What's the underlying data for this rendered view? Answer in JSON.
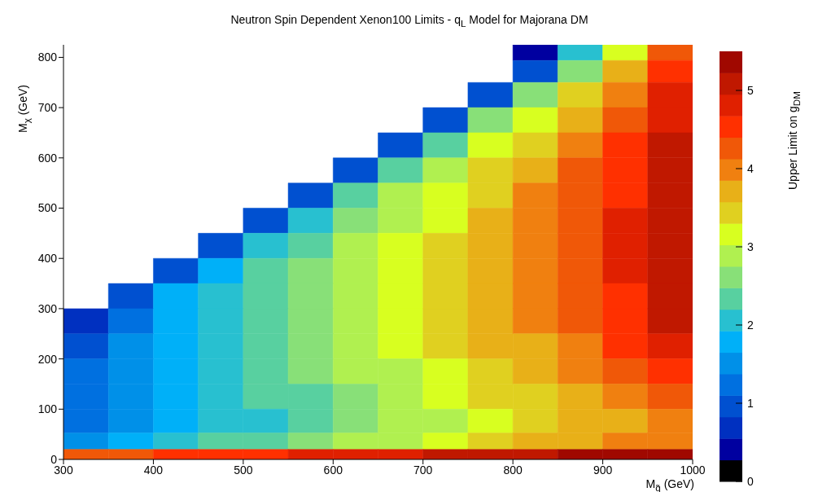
{
  "chart_data": {
    "type": "heatmap",
    "title": "Neutron Spin Dependent Xenon100 Limits - q$_{L}$ Model for Majorana DM",
    "xlabel": "M$_{q̃}$ (GeV)",
    "ylabel": "M$_{χ}$ (GeV)",
    "clabel": "Upper Limit on g$_{DM}$",
    "x": [
      325,
      375,
      425,
      475,
      525,
      575,
      625,
      675,
      725,
      775,
      825,
      875,
      925,
      975
    ],
    "y": [
      812.5,
      775,
      725,
      675,
      625,
      575,
      525,
      475,
      425,
      375,
      325,
      275,
      225,
      175,
      125,
      75,
      30,
      10
    ],
    "cells": [
      [
        null,
        null,
        null,
        null,
        null,
        null,
        null,
        null,
        null,
        null,
        0.5,
        2.0,
        3.2,
        4.3
      ],
      [
        null,
        null,
        null,
        null,
        null,
        null,
        null,
        null,
        null,
        null,
        0.9,
        2.6,
        3.6,
        4.5
      ],
      [
        null,
        null,
        null,
        null,
        null,
        null,
        null,
        null,
        null,
        0.9,
        2.6,
        3.4,
        4.05,
        4.7
      ],
      [
        null,
        null,
        null,
        null,
        null,
        null,
        null,
        null,
        0.9,
        2.5,
        3.2,
        3.8,
        4.3,
        4.85
      ],
      [
        null,
        null,
        null,
        null,
        null,
        null,
        null,
        0.9,
        2.4,
        3.05,
        3.55,
        4.0,
        4.45,
        4.98
      ],
      [
        null,
        null,
        null,
        null,
        null,
        null,
        0.9,
        2.3,
        2.9,
        3.35,
        3.75,
        4.15,
        4.58,
        5.1
      ],
      [
        null,
        null,
        null,
        null,
        null,
        0.9,
        2.2,
        2.75,
        3.15,
        3.5,
        3.85,
        4.22,
        4.65,
        5.15
      ],
      [
        null,
        null,
        null,
        null,
        0.9,
        2.1,
        2.6,
        2.98,
        3.27,
        3.58,
        3.9,
        4.26,
        4.68,
        5.17
      ],
      [
        null,
        null,
        null,
        0.9,
        2.0,
        2.45,
        2.78,
        3.05,
        3.3,
        3.6,
        3.92,
        4.27,
        4.68,
        5.15
      ],
      [
        null,
        null,
        0.9,
        1.9,
        2.3,
        2.58,
        2.85,
        3.1,
        3.35,
        3.63,
        3.93,
        4.27,
        4.68,
        5.17
      ],
      [
        null,
        0.9,
        1.7,
        2.08,
        2.38,
        2.64,
        2.9,
        3.15,
        3.4,
        3.63,
        3.92,
        4.25,
        4.63,
        5.1
      ],
      [
        0.7,
        1.35,
        1.8,
        2.12,
        2.4,
        2.65,
        2.9,
        3.14,
        3.38,
        3.63,
        3.88,
        4.18,
        4.55,
        5.0
      ],
      [
        1.0,
        1.5,
        1.85,
        2.13,
        2.38,
        2.62,
        2.86,
        3.1,
        3.33,
        3.58,
        3.83,
        4.12,
        4.45,
        4.82
      ],
      [
        1.2,
        1.6,
        1.85,
        2.1,
        2.33,
        2.56,
        2.8,
        3.02,
        3.25,
        3.48,
        3.72,
        3.98,
        4.25,
        4.55
      ],
      [
        1.35,
        1.58,
        1.8,
        2.02,
        2.23,
        2.45,
        2.66,
        2.88,
        3.09,
        3.31,
        3.53,
        3.76,
        3.98,
        4.26
      ],
      [
        1.34,
        1.55,
        1.75,
        1.96,
        2.16,
        2.37,
        2.57,
        2.78,
        2.98,
        3.19,
        3.39,
        3.6,
        3.8,
        4.01
      ],
      [
        1.6,
        1.8,
        2.0,
        2.2,
        2.4,
        2.6,
        2.8,
        3.0,
        3.2,
        3.4,
        3.6,
        3.8,
        4.0,
        4.1
      ],
      [
        4.2,
        4.3,
        4.4,
        4.5,
        4.6,
        4.7,
        4.8,
        4.9,
        5.0,
        5.1,
        5.2,
        5.3,
        5.35,
        5.4
      ]
    ],
    "xlim": [
      300,
      1000
    ],
    "ylim": [
      0,
      825
    ],
    "xticks": [
      300,
      400,
      500,
      600,
      700,
      800,
      900,
      1000
    ],
    "yticks": [
      0,
      100,
      200,
      300,
      400,
      500,
      600,
      700,
      800
    ],
    "clim": [
      0,
      5.5
    ],
    "cticks": [
      0,
      1,
      2,
      3,
      4,
      5
    ]
  }
}
